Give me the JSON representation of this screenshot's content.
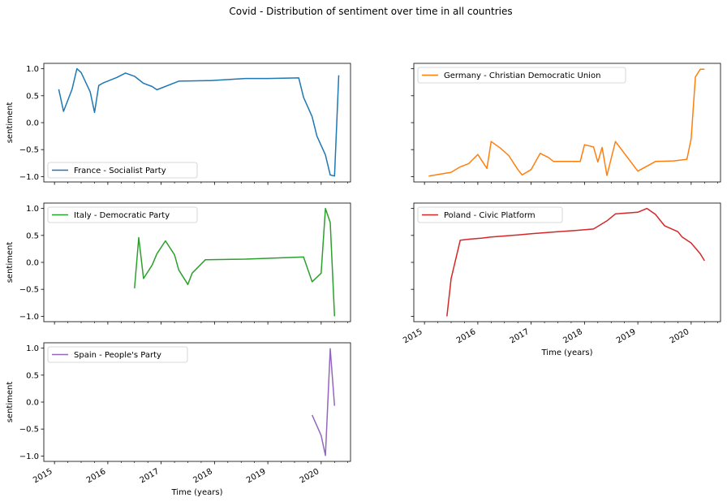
{
  "chart_data": {
    "type": "line",
    "title": "Covid - Distribution of sentiment over time in all countries",
    "ylabel": "sentiment",
    "xlabel": "Time (years)",
    "ylim": [
      -1.1,
      1.1
    ],
    "xlim": [
      2014.8,
      2020.55
    ],
    "yticks": [
      1.0,
      0.5,
      0.0,
      -0.5,
      -1.0
    ],
    "ytick_labels": [
      "1.0",
      "0.5",
      "0.0",
      "−0.5",
      "−1.0"
    ],
    "xticks": [
      2015,
      2016,
      2017,
      2018,
      2019,
      2020
    ],
    "xtick_labels": [
      "2015",
      "2016",
      "2017",
      "2018",
      "2019",
      "2020"
    ],
    "legend_location": "lower-left / upper-left",
    "panels": [
      {
        "name": "France - Socialist Party",
        "color": "#1f77b4",
        "legend_pos": "lower-left",
        "x": [
          2015.08,
          2015.17,
          2015.33,
          2015.42,
          2015.5,
          2015.67,
          2015.75,
          2015.83,
          2015.92,
          2016.17,
          2016.33,
          2016.5,
          2016.67,
          2016.83,
          2016.92,
          2017.33,
          2017.92,
          2018.58,
          2019.0,
          2019.58,
          2019.67,
          2019.83,
          2019.92,
          2020.08,
          2020.17,
          2020.25,
          2020.33
        ],
        "y": [
          0.62,
          0.21,
          0.62,
          1.0,
          0.93,
          0.57,
          0.19,
          0.69,
          0.74,
          0.84,
          0.92,
          0.86,
          0.73,
          0.67,
          0.61,
          0.77,
          0.78,
          0.82,
          0.82,
          0.83,
          0.47,
          0.11,
          -0.25,
          -0.6,
          -0.97,
          -0.99,
          0.88
        ]
      },
      {
        "name": "Germany - Christian Democratic Union",
        "color": "#ff7f0e",
        "legend_pos": "upper-left",
        "x": [
          2015.08,
          2015.33,
          2015.5,
          2015.67,
          2015.83,
          2016.0,
          2016.17,
          2016.25,
          2016.42,
          2016.58,
          2016.75,
          2016.83,
          2017.0,
          2017.17,
          2017.33,
          2017.42,
          2017.58,
          2017.92,
          2018.0,
          2018.17,
          2018.25,
          2018.33,
          2018.42,
          2018.58,
          2019.0,
          2019.33,
          2019.67,
          2019.92,
          2020.0,
          2020.08,
          2020.17,
          2020.25
        ],
        "y": [
          -0.99,
          -0.95,
          -0.92,
          -0.82,
          -0.76,
          -0.59,
          -0.85,
          -0.35,
          -0.47,
          -0.61,
          -0.87,
          -0.97,
          -0.87,
          -0.57,
          -0.65,
          -0.72,
          -0.72,
          -0.72,
          -0.41,
          -0.45,
          -0.73,
          -0.46,
          -0.98,
          -0.35,
          -0.9,
          -0.72,
          -0.71,
          -0.68,
          -0.3,
          0.85,
          0.99,
          0.99
        ]
      },
      {
        "name": "Italy - Democratic Party",
        "color": "#2ca02c",
        "legend_pos": "upper-left",
        "x": [
          2016.5,
          2016.58,
          2016.67,
          2016.83,
          2016.92,
          2017.08,
          2017.25,
          2017.33,
          2017.5,
          2017.58,
          2017.83,
          2018.58,
          2019.67,
          2019.83,
          2020.0,
          2020.08,
          2020.17,
          2020.25
        ],
        "y": [
          -0.48,
          0.46,
          -0.3,
          -0.05,
          0.16,
          0.4,
          0.14,
          -0.14,
          -0.41,
          -0.2,
          0.05,
          0.06,
          0.1,
          -0.36,
          -0.2,
          1.0,
          0.74,
          -1.0
        ]
      },
      {
        "name": "Poland - Civic Platform",
        "color": "#d62728",
        "legend_pos": "upper-left",
        "x": [
          2015.42,
          2015.5,
          2015.67,
          2015.83,
          2016.08,
          2016.25,
          2016.5,
          2016.75,
          2017.0,
          2017.25,
          2017.5,
          2017.83,
          2018.17,
          2018.42,
          2018.58,
          2019.0,
          2019.17,
          2019.33,
          2019.5,
          2019.75,
          2019.83,
          2020.0,
          2020.17,
          2020.25
        ],
        "y": [
          -1.0,
          -0.3,
          0.41,
          0.43,
          0.45,
          0.47,
          0.49,
          0.51,
          0.53,
          0.55,
          0.57,
          0.59,
          0.62,
          0.77,
          0.9,
          0.93,
          1.0,
          0.89,
          0.68,
          0.57,
          0.47,
          0.36,
          0.16,
          0.03
        ]
      },
      {
        "name": "Spain - People's Party",
        "color": "#9467bd",
        "legend_pos": "upper-left",
        "x": [
          2019.83,
          2020.0,
          2020.08,
          2020.17,
          2020.25
        ],
        "y": [
          -0.24,
          -0.62,
          -0.99,
          0.99,
          -0.07
        ]
      }
    ]
  }
}
